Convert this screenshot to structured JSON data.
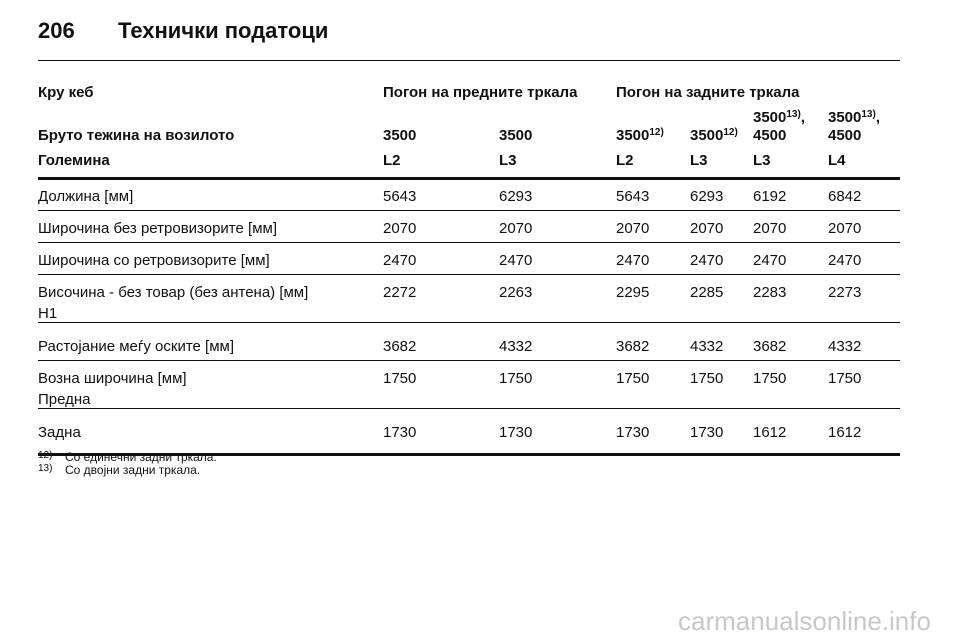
{
  "header": {
    "page_number": "206",
    "title": "Технички податоци"
  },
  "table": {
    "group_header": [
      "Кру кеб",
      "Погон на предните тркала",
      "Погон на задните тркала"
    ],
    "weight_row": {
      "label": "Бруто тежина на возилото",
      "cells": [
        {
          "value": "3500"
        },
        {
          "value": "3500"
        },
        {
          "value": "3500",
          "note": "12)"
        },
        {
          "value": "3500",
          "note": "12)"
        },
        {
          "value": "3500",
          "note": "13)",
          "tail": ",",
          "second_line": "4500"
        },
        {
          "value": "3500",
          "note": "13)",
          "tail": ",",
          "second_line": "4500"
        }
      ]
    },
    "size_row": [
      "Големина",
      "L2",
      "L3",
      "L2",
      "L3",
      "L3",
      "L4"
    ],
    "rows": [
      {
        "label": "Должина [мм]",
        "values": [
          5643,
          6293,
          5643,
          6293,
          6192,
          6842
        ]
      },
      {
        "label": "Широчина без ретровизорите [мм]",
        "values": [
          2070,
          2070,
          2070,
          2070,
          2070,
          2070
        ]
      },
      {
        "label": "Широчина со ретровизорите [мм]",
        "values": [
          2470,
          2470,
          2470,
          2470,
          2470,
          2470
        ]
      },
      {
        "label": "Височина - без товар (без антена) [мм]",
        "sublabel": "H1",
        "values": [
          2272,
          2263,
          2295,
          2285,
          2283,
          2273
        ]
      },
      {
        "label": "Растојание меѓу оските [мм]",
        "values": [
          3682,
          4332,
          3682,
          4332,
          3682,
          4332
        ]
      },
      {
        "label": "Возна широчина [мм]",
        "sublabel": "Предна",
        "values": [
          1750,
          1750,
          1750,
          1750,
          1750,
          1750
        ]
      },
      {
        "label": "Задна",
        "values": [
          1730,
          1730,
          1730,
          1730,
          1612,
          1612
        ]
      }
    ]
  },
  "footnotes": [
    {
      "mark": "12)",
      "text": "Со единечни задни тркала."
    },
    {
      "mark": "13)",
      "text": "Со двојни задни тркала."
    }
  ],
  "watermark": "carmanualsonline.info"
}
